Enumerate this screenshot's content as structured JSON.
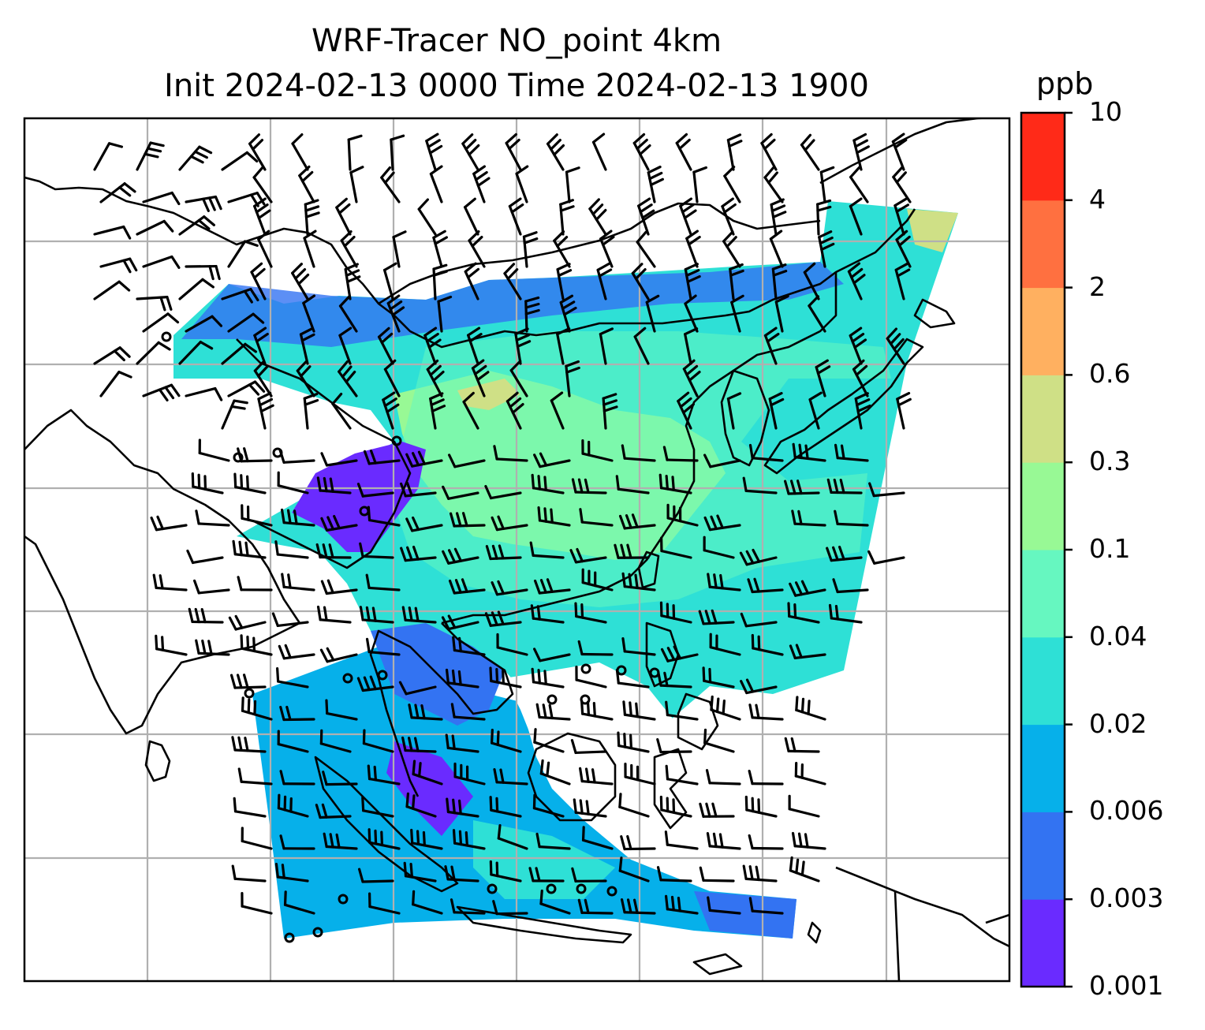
{
  "title": {
    "line1": "WRF-Tracer NO_point 4km",
    "line2": "Init 2024-02-13 0000 Time 2024-02-13 1900"
  },
  "colorbar": {
    "units": "ppb",
    "tick_labels": [
      "0.001",
      "0.003",
      "0.006",
      "0.02",
      "0.04",
      "0.1",
      "0.3",
      "0.6",
      "2",
      "4",
      "10"
    ],
    "colors": [
      "#6a2bff",
      "#3373f2",
      "#06b0ea",
      "#2ee0d6",
      "#66f7c0",
      "#98f995",
      "#cfe086",
      "#ffb060",
      "#ff7040",
      "#ff2a18"
    ]
  },
  "map": {
    "field_colors": {
      "bg": "#2ee0d6",
      "low1": "#6a2bff",
      "low2": "#3373f2",
      "low3": "#06b0ea",
      "mid": "#66f7c0",
      "high": "#98f995",
      "peak": "#cfe086"
    },
    "coastline_color": "#000000",
    "gridline_color": "#b0b0b0",
    "gridlines": true
  }
}
